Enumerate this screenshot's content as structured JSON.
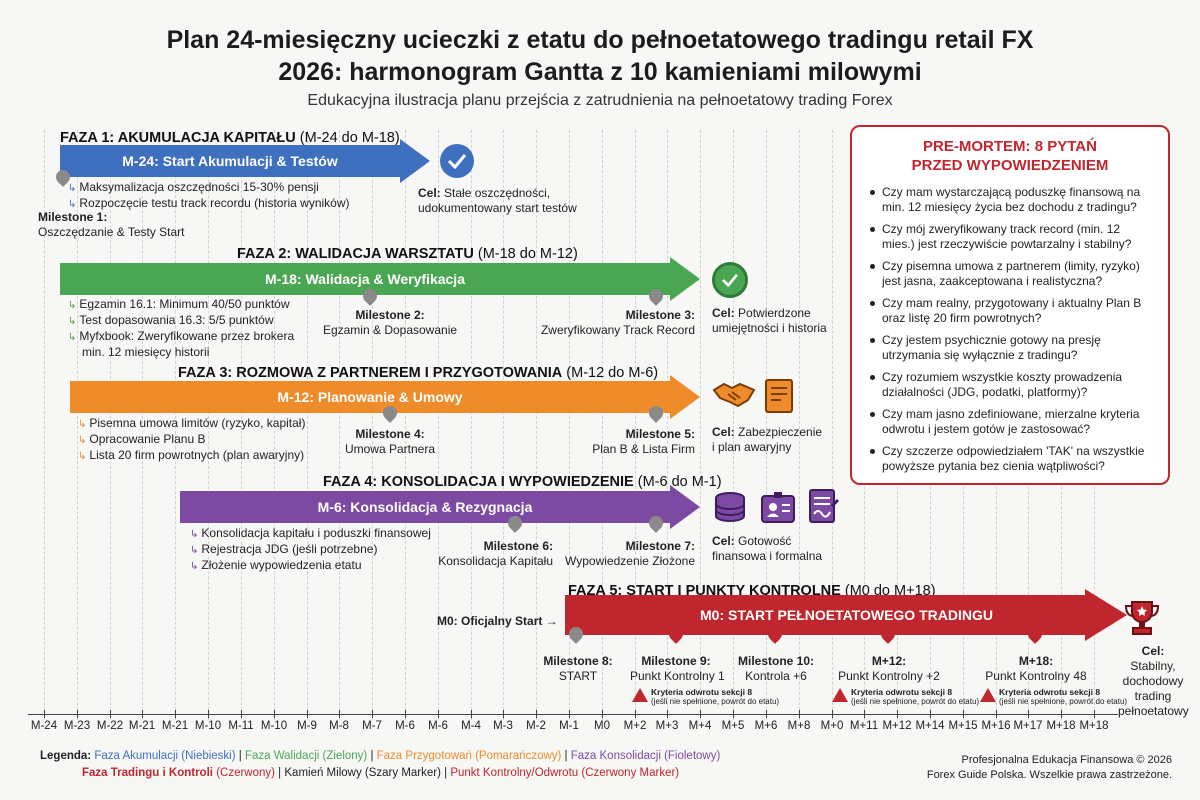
{
  "title_line1": "Plan 24-miesięczny ucieczki z etatu do pełnoetatowego tradingu retail FX",
  "title_line2": "2026: harmonogram Gantta z 10 kamieniami milowymi",
  "subtitle": "Edukacyjna ilustracja planu przejścia z zatrudnienia na pełnoetatowy trading Forex",
  "colors": {
    "blue": "#3f6fbf",
    "green": "#4aa652",
    "orange": "#ee8c2c",
    "purple": "#7d4aa3",
    "red": "#c0262d",
    "grey": "#8a8a8a"
  },
  "phases": [
    {
      "head": "FAZA 1: AKUMULACJA KAPITAŁU",
      "range": "(M-24 do M-18)",
      "bar": "M-24: Start Akumulacji & Testów",
      "tasks": [
        "Maksymalizacja oszczędności 15-30% pensji",
        "Rozpoczęcie testu track recordu (historia wyników)"
      ],
      "goal_bold": "Cel:",
      "goal_rest": "Stałe oszczędności,",
      "goal_line2": "udokumentowany start testów"
    },
    {
      "head": "FAZA 2: WALIDACJA WARSZTATU",
      "range": "(M-18 do M-12)",
      "bar": "M-18: Walidacja & Weryfikacja",
      "tasks": [
        "Egzamin 16.1: Minimum 40/50 punktów",
        "Test dopasowania 16.3: 5/5 punktów",
        "Myfxbook: Zweryfikowane przez brokera",
        "min. 12 miesięcy historii"
      ],
      "goal_bold": "Cel:",
      "goal_rest": "Potwierdzone",
      "goal_line2": "umiejętności i historia"
    },
    {
      "head": "FAZA 3: ROZMOWA Z PARTNEREM I PRZYGOTOWANIA",
      "range": "(M-12 do M-6)",
      "bar": "M-12: Planowanie & Umowy",
      "tasks": [
        "Pisemna umowa limitów (ryzyko, kapitał)",
        "Opracowanie Planu B",
        "Lista 20 firm powrotnych (plan awaryjny)"
      ],
      "goal_bold": "Cel:",
      "goal_rest": "Zabezpieczenie",
      "goal_line2": "i plan awaryjny"
    },
    {
      "head": "FAZA 4: KONSOLIDACJA I WYPOWIEDZENIE",
      "range": "(M-6 do M-1)",
      "bar": "M-6: Konsolidacja & Rezygnacja",
      "tasks": [
        "Konsolidacja kapitału i poduszki finansowej",
        "Rejestracja JDG (jeśli potrzebne)",
        "Złożenie wypowiedzenia etatu"
      ],
      "goal_bold": "Cel:",
      "goal_rest": "Gotowość",
      "goal_line2": "finansowa i formalna"
    },
    {
      "head": "FAZA 5: START I PUNKTY KONTROLNE",
      "range": "(M0 do M+18)",
      "bar": "M0: START PEŁNOETATOWEGO TRADINGU",
      "start_label": "M0: Oficjalny Start",
      "goal_bold": "Cel:",
      "goal_line2": "Stabilny,",
      "goal_line3": "dochodowy",
      "goal_line4": "trading",
      "goal_line5": "pełnoetatowy"
    }
  ],
  "milestones": [
    {
      "title": "Milestone 1:",
      "text": "Oszczędzanie & Testy Start"
    },
    {
      "title": "Milestone 2:",
      "text": "Egzamin & Dopasowanie"
    },
    {
      "title": "Milestone 3:",
      "text": "Zweryfikowany Track Record"
    },
    {
      "title": "Milestone 4:",
      "text": "Umowa Partnera"
    },
    {
      "title": "Milestone 5:",
      "text": "Plan B & Lista Firm"
    },
    {
      "title": "Milestone 6:",
      "text": "Konsolidacja Kapitału"
    },
    {
      "title": "Milestone 7:",
      "text": "Wypowiedzenie Złożone"
    },
    {
      "title": "Milestone 8:",
      "text": "START"
    },
    {
      "title": "Milestone 9:",
      "text": "Punkt Kontrolny 1"
    },
    {
      "title": "Milestone 10:",
      "text": "Kontrola +6"
    },
    {
      "title": "M+12:",
      "text": "Punkt Kontrolny +2"
    },
    {
      "title": "M+18:",
      "text": "Punkt Kontrolny 48"
    }
  ],
  "warning": {
    "title": "Kryteria odwrotu sekcji 8",
    "text": "(jeśli nie spełnione, powrót do etatu)"
  },
  "premortem": {
    "title_line1": "PRE-MORTEM: 8 PYTAŃ",
    "title_line2": "PRZED WYPOWIEDZENIEM",
    "questions": [
      "Czy mam wystarczającą poduszkę finansową na min. 12 miesięcy życia bez dochodu z tradingu?",
      "Czy mój zweryfikowany track record (min. 12 mies.) jest rzeczywiście powtarzalny i stabilny?",
      "Czy pisemna umowa z partnerem (limity, ryzyko) jest jasna, zaakceptowana i realistyczna?",
      "Czy mam realny, przygotowany i aktualny Plan B oraz listę 20 firm powrotnych?",
      "Czy jestem psychicznie gotowy na presję utrzymania się wyłącznie z tradingu?",
      "Czy rozumiem wszystkie koszty prowadzenia działalności (JDG, podatki, platformy)?",
      "Czy mam jasno zdefiniowane, mierzalne kryteria odwrotu i jestem gotów je zastosować?",
      "Czy szczerze odpowiedziałem 'TAK' na wszystkie powyższe pytania bez cienia wątpliwości?"
    ]
  },
  "axis": [
    "M-24",
    "M-23",
    "M-22",
    "M-21",
    "M-21",
    "M-10",
    "M-11",
    "M-10",
    "M-9",
    "M-8",
    "M-7",
    "M-6",
    "M-6",
    "M-4",
    "M-3",
    "M-2",
    "M-1",
    "M0",
    "M+2",
    "M+3",
    "M+4",
    "M+5",
    "M+6",
    "M+8",
    "M+0",
    "M+11",
    "M+12",
    "M+14",
    "M+15",
    "M+16",
    "M+17",
    "M+18",
    "M+18"
  ],
  "legend": {
    "label": "Legenda:",
    "items_line1": [
      {
        "text": "Faza Akumulacji (Niebieski)",
        "color": "#3f6fbf"
      },
      {
        "text": "Faza Walidacji (Zielony)",
        "color": "#4aa652"
      },
      {
        "text": "Faza Przygotowań (Pomarańczowy)",
        "color": "#ee8c2c"
      },
      {
        "text": "Faza Konsolidacji (Fioletowy)",
        "color": "#7d4aa3"
      }
    ],
    "item_trading": "Faza Tradingu i Kontroli",
    "item_trading_rest": "(Czerwony)",
    "item_milestone": "Kamień Milowy (Szary Marker)",
    "item_checkpoint": "Punkt Kontrolny/Odwrotu (Czerwony Marker)"
  },
  "footer_line1": "Profesjonalna Edukacja Finansowa © 2026",
  "footer_line2": "Forex Guide Polska. Wszelkie prawa zastrzeżone."
}
